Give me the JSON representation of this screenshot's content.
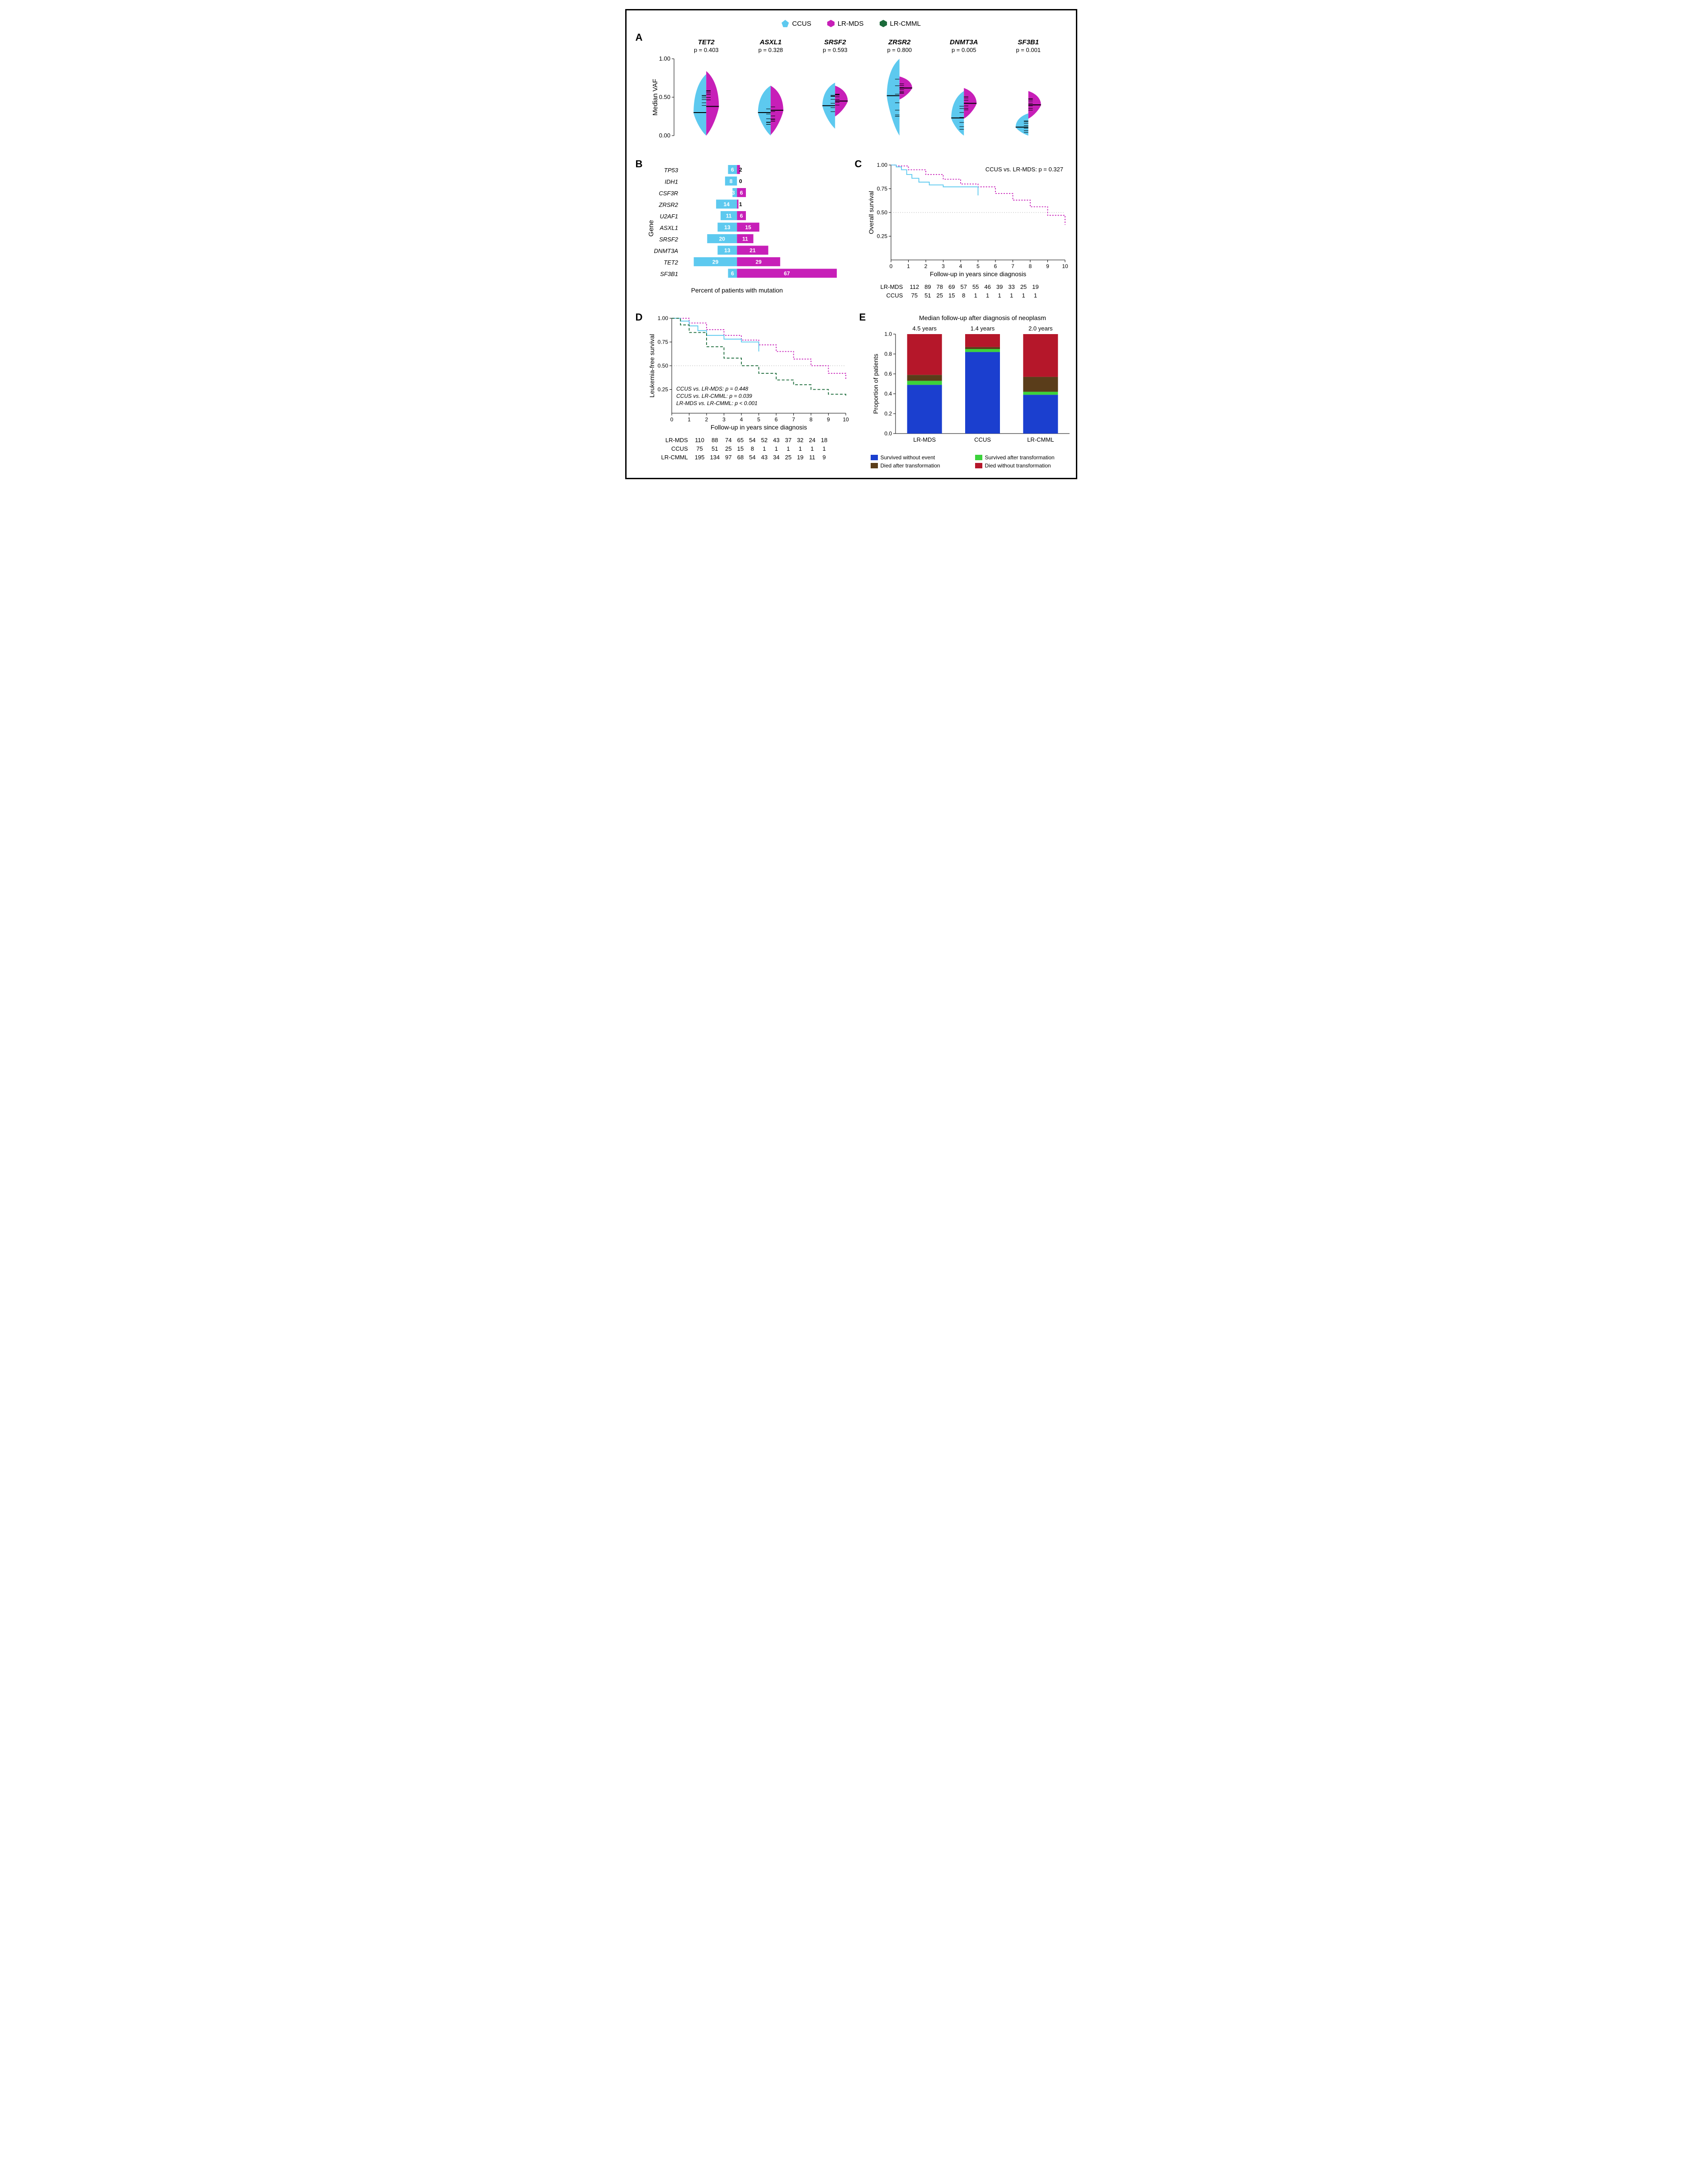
{
  "colors": {
    "ccus": "#5dc9ef",
    "lrmds": "#c71fb8",
    "lrcmml": "#1b6b3a",
    "survived_without": "#1b3fcf",
    "survived_after": "#3bd23b",
    "died_after": "#5a3d1a",
    "died_without": "#b5172a",
    "grid": "#bbbbbb",
    "text": "#000000",
    "white": "#ffffff"
  },
  "legend": {
    "ccus": "CCUS",
    "lrmds": "LR-MDS",
    "lrcmml": "LR-CMML"
  },
  "panelA": {
    "y_label": "Median VAF",
    "ylim": [
      0,
      1
    ],
    "yticks": [
      0,
      0.5,
      1
    ],
    "genes": [
      {
        "name": "TET2",
        "p": "p = 0.403",
        "ccus_median": 0.3,
        "mds_median": 0.38,
        "ccus_spread": 0.5,
        "mds_spread": 0.46
      },
      {
        "name": "ASXL1",
        "p": "p = 0.328",
        "ccus_median": 0.3,
        "mds_median": 0.33,
        "ccus_spread": 0.35,
        "mds_spread": 0.32
      },
      {
        "name": "SRSF2",
        "p": "p = 0.593",
        "ccus_median": 0.39,
        "mds_median": 0.45,
        "ccus_spread": 0.3,
        "mds_spread": 0.2
      },
      {
        "name": "ZRSR2",
        "p": "p = 0.800",
        "ccus_median": 0.52,
        "mds_median": 0.62,
        "ccus_spread": 0.6,
        "mds_spread": 0.15
      },
      {
        "name": "DNMT3A",
        "p": "p = 0.005",
        "ccus_median": 0.23,
        "mds_median": 0.42,
        "ccus_spread": 0.35,
        "mds_spread": 0.2
      },
      {
        "name": "SF3B1",
        "p": "p = 0.001",
        "ccus_median": 0.11,
        "mds_median": 0.4,
        "ccus_spread": 0.18,
        "mds_spread": 0.18
      }
    ]
  },
  "panelB": {
    "x_label": "Percent of patients with mutation",
    "y_label": "Gene",
    "max_pct": 70,
    "genes": [
      {
        "name": "TP53",
        "ccus": 6,
        "mds": 2
      },
      {
        "name": "IDH1",
        "ccus": 8,
        "mds": 0
      },
      {
        "name": "CSF3R",
        "ccus": 3,
        "mds": 6
      },
      {
        "name": "ZRSR2",
        "ccus": 14,
        "mds": 1
      },
      {
        "name": "U2AF1",
        "ccus": 11,
        "mds": 6
      },
      {
        "name": "ASXL1",
        "ccus": 13,
        "mds": 15
      },
      {
        "name": "SRSF2",
        "ccus": 20,
        "mds": 11
      },
      {
        "name": "DNMT3A",
        "ccus": 13,
        "mds": 21
      },
      {
        "name": "TET2",
        "ccus": 29,
        "mds": 29
      },
      {
        "name": "SF3B1",
        "ccus": 6,
        "mds": 67
      }
    ]
  },
  "panelC": {
    "y_label": "Overall survival",
    "x_label": "Follow-up in years since diagnosis",
    "annotation": "CCUS vs. LR-MDS: p = 0.327",
    "xlim": [
      0,
      10
    ],
    "ylim": [
      0,
      1
    ],
    "xticks": [
      0,
      1,
      2,
      3,
      4,
      5,
      6,
      7,
      8,
      9,
      10
    ],
    "yticks": [
      0.25,
      0.5,
      0.75,
      1.0
    ],
    "mds": [
      [
        0,
        1
      ],
      [
        0.3,
        0.99
      ],
      [
        1,
        0.95
      ],
      [
        2,
        0.9
      ],
      [
        3,
        0.85
      ],
      [
        4,
        0.8
      ],
      [
        5,
        0.77
      ],
      [
        6,
        0.7
      ],
      [
        7,
        0.63
      ],
      [
        8,
        0.56
      ],
      [
        9,
        0.47
      ],
      [
        10,
        0.37
      ]
    ],
    "ccus": [
      [
        0,
        1
      ],
      [
        0.3,
        0.98
      ],
      [
        0.6,
        0.95
      ],
      [
        0.9,
        0.9
      ],
      [
        1.2,
        0.86
      ],
      [
        1.6,
        0.82
      ],
      [
        2.2,
        0.79
      ],
      [
        3,
        0.77
      ],
      [
        4,
        0.77
      ],
      [
        5,
        0.68
      ]
    ],
    "risk": {
      "LR-MDS": [
        112,
        89,
        78,
        69,
        57,
        55,
        46,
        39,
        33,
        25,
        19
      ],
      "CCUS": [
        75,
        51,
        25,
        15,
        8,
        1,
        1,
        1,
        1,
        1,
        1
      ]
    }
  },
  "panelD": {
    "y_label": "Leukemia-free survival",
    "x_label": "Follow-up in years since diagnosis",
    "annotations": [
      "CCUS vs. LR-MDS: p = 0.448",
      "CCUS vs. LR-CMML: p = 0.039",
      "LR-MDS vs. LR-CMML: p < 0.001"
    ],
    "xlim": [
      0,
      10
    ],
    "ylim": [
      0,
      1
    ],
    "xticks": [
      0,
      1,
      2,
      3,
      4,
      5,
      6,
      7,
      8,
      9,
      10
    ],
    "yticks": [
      0.25,
      0.5,
      0.75,
      1.0
    ],
    "mds": [
      [
        0,
        1
      ],
      [
        1,
        0.95
      ],
      [
        2,
        0.88
      ],
      [
        3,
        0.82
      ],
      [
        4,
        0.77
      ],
      [
        5,
        0.72
      ],
      [
        6,
        0.65
      ],
      [
        7,
        0.57
      ],
      [
        8,
        0.5
      ],
      [
        9,
        0.42
      ],
      [
        10,
        0.35
      ]
    ],
    "ccus": [
      [
        0,
        1
      ],
      [
        0.5,
        0.97
      ],
      [
        1,
        0.92
      ],
      [
        1.5,
        0.87
      ],
      [
        2,
        0.82
      ],
      [
        3,
        0.78
      ],
      [
        4,
        0.75
      ],
      [
        5,
        0.65
      ]
    ],
    "cmml": [
      [
        0,
        1
      ],
      [
        0.5,
        0.93
      ],
      [
        1,
        0.85
      ],
      [
        2,
        0.7
      ],
      [
        3,
        0.58
      ],
      [
        4,
        0.5
      ],
      [
        5,
        0.42
      ],
      [
        6,
        0.35
      ],
      [
        7,
        0.3
      ],
      [
        8,
        0.25
      ],
      [
        9,
        0.2
      ],
      [
        10,
        0.17
      ]
    ],
    "risk": {
      "LR-MDS": [
        110,
        88,
        74,
        65,
        54,
        52,
        43,
        37,
        32,
        24,
        18
      ],
      "CCUS": [
        75,
        51,
        25,
        15,
        8,
        1,
        1,
        1,
        1,
        1,
        1
      ],
      "LR-CMML": [
        195,
        134,
        97,
        68,
        54,
        43,
        34,
        25,
        19,
        11,
        9
      ]
    }
  },
  "panelE": {
    "title": "Median follow-up after diagnosis of neoplasm",
    "y_label": "Proportion of patients",
    "ylim": [
      0,
      1
    ],
    "yticks": [
      0,
      0.2,
      0.4,
      0.6,
      0.8,
      1.0
    ],
    "groups": [
      {
        "name": "LR-MDS",
        "followup": "4.5 years",
        "survived_without": 0.49,
        "survived_after": 0.04,
        "died_after": 0.06,
        "died_without": 0.41
      },
      {
        "name": "CCUS",
        "followup": "1.4 years",
        "survived_without": 0.82,
        "survived_after": 0.03,
        "died_after": 0.02,
        "died_without": 0.13
      },
      {
        "name": "LR-CMML",
        "followup": "2.0 years",
        "survived_without": 0.39,
        "survived_after": 0.03,
        "died_after": 0.15,
        "died_without": 0.43
      }
    ],
    "legend": {
      "survived_without": "Survived without event",
      "survived_after": "Survived after transformation",
      "died_after": "Died after transformation",
      "died_without": "Died without transformation"
    }
  }
}
